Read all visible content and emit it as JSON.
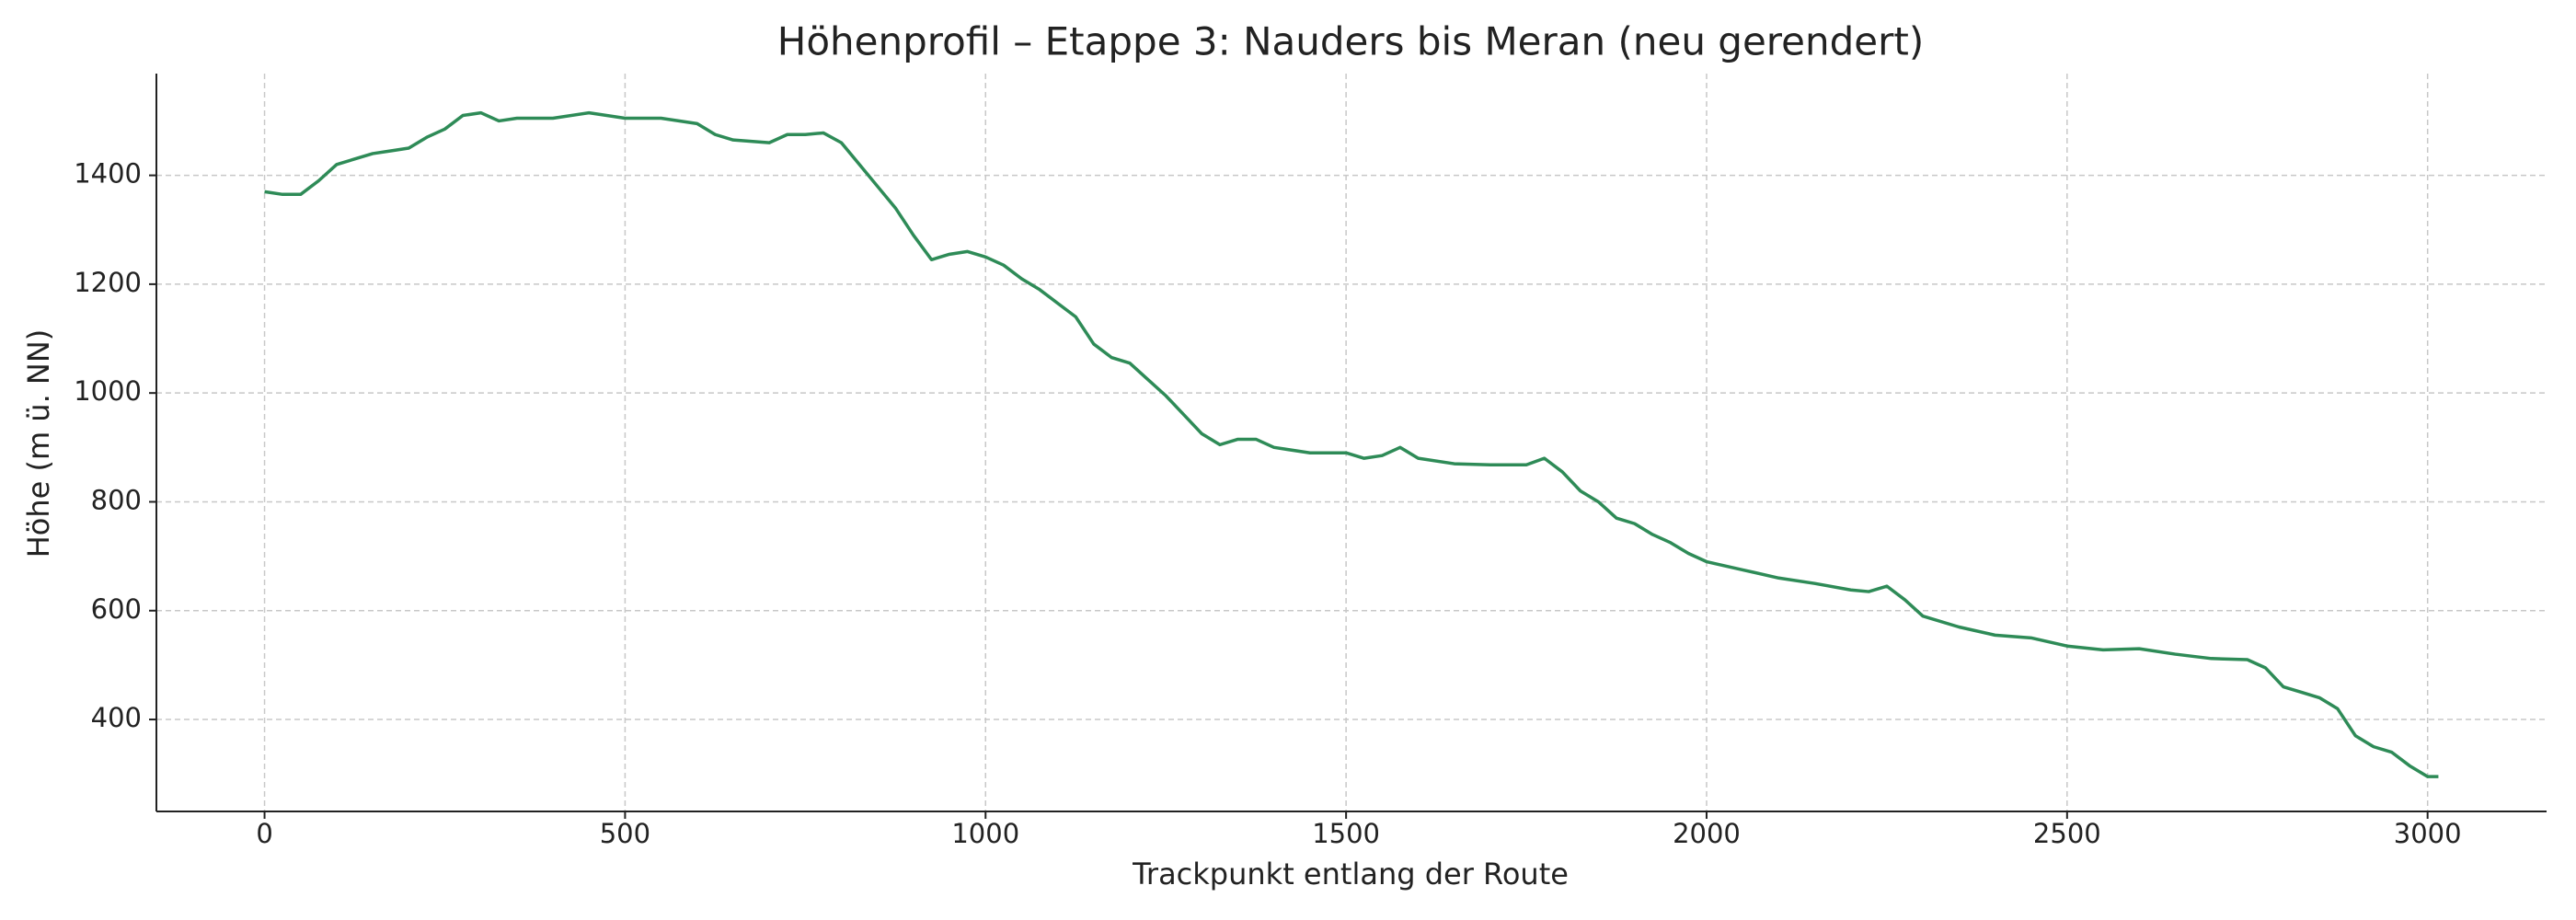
{
  "chart_data": {
    "type": "line",
    "title": "Höhenprofil – Etappe 3: Nauders bis Meran (neu gerendert)",
    "xlabel": "Trackpunkt entlang der Route",
    "ylabel": "Höhe (m ü. NN)",
    "color": "#2e8b57",
    "grid": true,
    "xlim": [
      -150,
      3165
    ],
    "ylim": [
      231,
      1587
    ],
    "xticks": [
      0,
      500,
      1000,
      1500,
      2000,
      2500,
      3000
    ],
    "yticks": [
      400,
      600,
      800,
      1000,
      1200,
      1400
    ],
    "x": [
      0,
      25,
      50,
      75,
      100,
      125,
      150,
      175,
      200,
      225,
      250,
      275,
      300,
      325,
      350,
      400,
      450,
      500,
      550,
      600,
      625,
      650,
      700,
      725,
      750,
      775,
      800,
      825,
      850,
      875,
      900,
      925,
      950,
      975,
      1000,
      1025,
      1050,
      1075,
      1100,
      1125,
      1150,
      1175,
      1200,
      1225,
      1250,
      1275,
      1300,
      1325,
      1350,
      1375,
      1400,
      1450,
      1500,
      1525,
      1550,
      1575,
      1600,
      1650,
      1700,
      1750,
      1775,
      1800,
      1825,
      1850,
      1875,
      1900,
      1925,
      1950,
      1975,
      2000,
      2050,
      2100,
      2150,
      2200,
      2225,
      2250,
      2275,
      2300,
      2350,
      2400,
      2450,
      2500,
      2550,
      2600,
      2650,
      2700,
      2750,
      2775,
      2800,
      2825,
      2850,
      2875,
      2900,
      2925,
      2950,
      2975,
      3000,
      3015
    ],
    "values": [
      1370,
      1365,
      1365,
      1390,
      1420,
      1430,
      1440,
      1445,
      1450,
      1470,
      1485,
      1510,
      1515,
      1500,
      1505,
      1505,
      1515,
      1505,
      1505,
      1495,
      1475,
      1465,
      1460,
      1475,
      1475,
      1478,
      1460,
      1420,
      1380,
      1340,
      1290,
      1245,
      1255,
      1260,
      1250,
      1235,
      1210,
      1190,
      1165,
      1140,
      1090,
      1065,
      1055,
      1025,
      995,
      960,
      925,
      905,
      915,
      915,
      900,
      890,
      890,
      880,
      885,
      900,
      880,
      870,
      868,
      868,
      880,
      855,
      820,
      800,
      770,
      760,
      740,
      725,
      705,
      690,
      675,
      660,
      650,
      638,
      635,
      645,
      620,
      590,
      570,
      555,
      550,
      535,
      528,
      530,
      520,
      512,
      510,
      495,
      460,
      450,
      440,
      420,
      370,
      350,
      340,
      315,
      295,
      295
    ]
  }
}
